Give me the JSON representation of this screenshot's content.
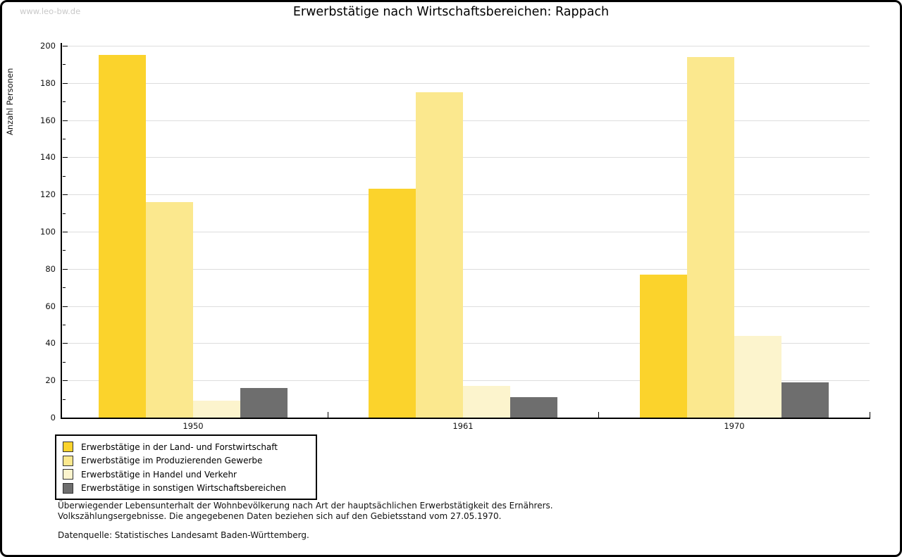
{
  "watermark": "www.leo-bw.de",
  "title": "Erwerbstätige nach Wirtschaftsbereichen: Rappach",
  "chart_data": {
    "type": "bar",
    "title": "Erwerbstätige nach Wirtschaftsbereichen: Rappach",
    "categories": [
      "1950",
      "1961",
      "1970"
    ],
    "series": [
      {
        "name": "Erwerbstätige in der Land- und Forstwirtschaft",
        "color": "#FBD32C",
        "values": [
          195,
          123,
          77
        ]
      },
      {
        "name": "Erwerbstätige im Produzierenden Gewerbe",
        "color": "#FBE88E",
        "values": [
          116,
          175,
          194
        ]
      },
      {
        "name": "Erwerbstätige in Handel und Verkehr",
        "color": "#FCF4CD",
        "values": [
          9,
          17,
          44
        ]
      },
      {
        "name": "Erwerbstätige in sonstigen Wirtschaftsbereichen",
        "color": "#6E6E6E",
        "values": [
          16,
          11,
          19
        ]
      }
    ],
    "ylabel": "Anzahl Personen",
    "ylim": [
      0,
      200
    ],
    "ytick_step": 20,
    "ytick_minor_step": 10,
    "grid": true,
    "legend_position": "bottom-left",
    "gridline_color": "#dddddd"
  },
  "footer": {
    "line1": "Überwiegender Lebensunterhalt der Wohnbevölkerung nach Art der hauptsächlichen Erwerbstätigkeit des Ernährers.",
    "line2": "Volkszählungsergebnisse. Die angegebenen Daten beziehen sich auf den Gebietsstand vom 27.05.1970.",
    "source": "Datenquelle: Statistisches Landesamt Baden-Württemberg."
  }
}
